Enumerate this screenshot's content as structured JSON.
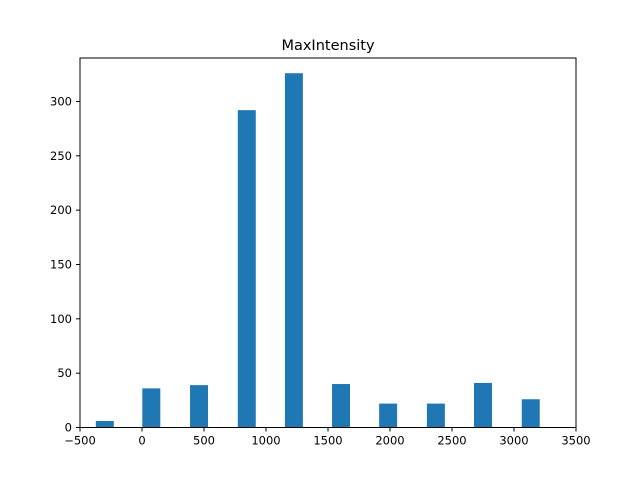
{
  "chart_data": {
    "type": "bar",
    "title": "MaxIntensity",
    "xlabel": "",
    "ylabel": "",
    "xlim": [
      -500,
      3500
    ],
    "ylim": [
      0,
      340
    ],
    "bar_width": 145,
    "color": "#1f77b4",
    "grid": false,
    "x": [
      -300,
      75,
      460,
      845,
      1225,
      1605,
      1985,
      2370,
      2750,
      3135
    ],
    "values": [
      6,
      36,
      39,
      292,
      326,
      40,
      22,
      22,
      41,
      26
    ],
    "xticks": [
      -500,
      0,
      500,
      1000,
      1500,
      2000,
      2500,
      3000,
      3500
    ],
    "xtick_labels": [
      "−500",
      "0",
      "500",
      "1000",
      "1500",
      "2000",
      "2500",
      "3000",
      "3500"
    ],
    "yticks": [
      0,
      50,
      100,
      150,
      200,
      250,
      300
    ],
    "ytick_labels": [
      "0",
      "50",
      "100",
      "150",
      "200",
      "250",
      "300"
    ]
  }
}
